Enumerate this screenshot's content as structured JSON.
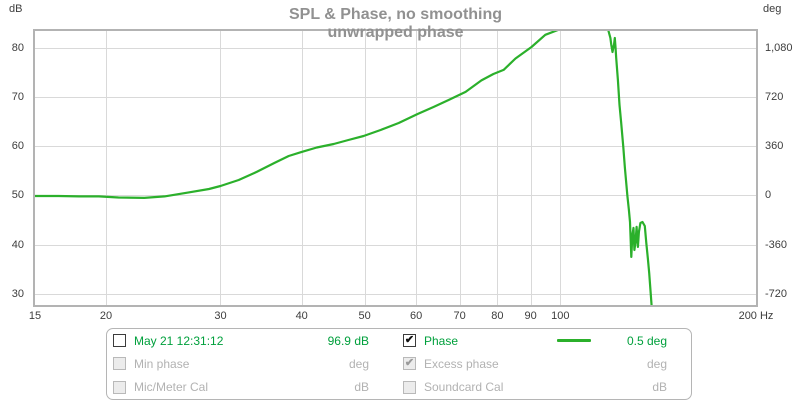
{
  "colors": {
    "trace_green": "#2bb02b",
    "legend_green": "#00a03c",
    "gridline": "#d9d9d9",
    "plot_border": "#b3b3b3",
    "title_gray": "#919191",
    "tick_text": "#3d3d3d",
    "disabled_text": "#b2b2b2"
  },
  "icons": {
    "check_glyph": "✔"
  },
  "legend": {
    "items": [
      {
        "label": "May 21 12:31:12",
        "value": "96.9 dB",
        "state": "unchecked"
      },
      {
        "label": "Phase",
        "value": "0.5 deg",
        "state": "checked",
        "swatch": true
      },
      {
        "label": "Min phase",
        "value": "deg",
        "state": "disabled"
      },
      {
        "label": "Excess phase",
        "value": "deg",
        "state": "disabled-checked"
      },
      {
        "label": "Mic/Meter Cal",
        "value": "dB",
        "state": "disabled"
      },
      {
        "label": "Soundcard Cal",
        "value": "dB",
        "state": "disabled"
      }
    ]
  },
  "chart_data": {
    "type": "line",
    "title_line1": "SPL & Phase, no smoothing",
    "title_line2": "unwrapped phase",
    "x_scale": "log",
    "x_unit": "Hz",
    "xlim": [
      15.55,
      200
    ],
    "x_ticks": {
      "values": [
        15,
        20,
        30,
        40,
        50,
        60,
        70,
        80,
        90,
        100,
        200
      ],
      "labels": [
        "15",
        "20",
        "30",
        "40",
        "50",
        "60",
        "70",
        "80",
        "90",
        "100",
        "200 Hz"
      ]
    },
    "y_left": {
      "unit": "dB",
      "ylim": [
        27.75,
        83.35
      ],
      "values": [
        80,
        70,
        60,
        50,
        40,
        30
      ],
      "labels": [
        "80",
        "70",
        "60",
        "50",
        "40",
        "30"
      ]
    },
    "y_right": {
      "unit": "deg",
      "ylim": [
        -800,
        1201
      ],
      "values": [
        1080,
        720,
        360,
        0,
        -360,
        -720
      ],
      "labels": [
        "1,080",
        "720",
        "360",
        "0",
        "-360",
        "-720"
      ]
    },
    "grid": true,
    "legend_position": "bottom",
    "series": [
      {
        "name": "Phase",
        "unit": "deg",
        "color": "#2bb02b",
        "points": [
          [
            15.4,
            -4
          ],
          [
            16.9,
            -4
          ],
          [
            18.2,
            -7
          ],
          [
            19.5,
            -7
          ],
          [
            20.9,
            -15
          ],
          [
            22.9,
            -18
          ],
          [
            24.6,
            -7
          ],
          [
            26.8,
            22
          ],
          [
            28.8,
            47
          ],
          [
            30,
            69
          ],
          [
            32,
            113
          ],
          [
            34.1,
            172
          ],
          [
            36.3,
            237
          ],
          [
            38.2,
            288
          ],
          [
            40,
            318
          ],
          [
            42.2,
            350
          ],
          [
            44.8,
            376
          ],
          [
            47.2,
            405
          ],
          [
            49.8,
            434
          ],
          [
            52.9,
            478
          ],
          [
            56.4,
            529
          ],
          [
            60.3,
            595
          ],
          [
            63.8,
            646
          ],
          [
            67.3,
            697
          ],
          [
            71.5,
            756
          ],
          [
            75.6,
            840
          ],
          [
            78.9,
            887
          ],
          [
            81.8,
            917
          ],
          [
            85.3,
            1000
          ],
          [
            90.3,
            1084
          ],
          [
            94.8,
            1173
          ],
          [
            99.3,
            1210
          ],
          [
            101.5,
            1280
          ],
          [
            105,
            1400
          ],
          [
            109,
            1520
          ],
          [
            113,
            1560
          ],
          [
            116,
            1480
          ],
          [
            118.6,
            1201
          ],
          [
            119.4,
            1150
          ],
          [
            119.8,
            1099
          ],
          [
            120.3,
            1048
          ],
          [
            121,
            1106
          ],
          [
            121.3,
            1150
          ],
          [
            121.6,
            1084
          ],
          [
            121.9,
            1004
          ],
          [
            122.6,
            843
          ],
          [
            123.3,
            661
          ],
          [
            124,
            537
          ],
          [
            125,
            354
          ],
          [
            125.7,
            201
          ],
          [
            126.8,
            -4
          ],
          [
            127.5,
            -106
          ],
          [
            128,
            -194
          ],
          [
            128.6,
            -449
          ],
          [
            129.1,
            -288
          ],
          [
            129.6,
            -237
          ],
          [
            130,
            -398
          ],
          [
            130.5,
            -340
          ],
          [
            131,
            -230
          ],
          [
            131.6,
            -376
          ],
          [
            132.1,
            -267
          ],
          [
            132.8,
            -201
          ],
          [
            133.8,
            -194
          ],
          [
            134.9,
            -223
          ],
          [
            135.6,
            -347
          ],
          [
            136.3,
            -456
          ],
          [
            137,
            -566
          ],
          [
            137.7,
            -705
          ],
          [
            138.2,
            -814
          ],
          [
            138.4,
            -851
          ]
        ]
      }
    ]
  }
}
